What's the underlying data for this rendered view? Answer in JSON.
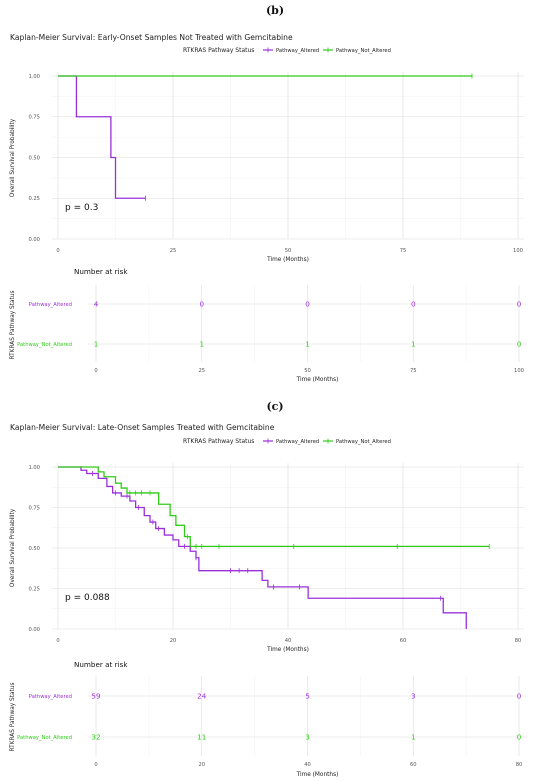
{
  "colors": {
    "altered": "#9B30D9",
    "not_altered": "#2ECC17"
  },
  "panels": [
    {
      "label": "(b)",
      "title": "Kaplan-Meier Survival: Early-Onset Samples Not Treated with Gemcitabine",
      "legend_title": "RTKRAS Pathway Status",
      "legend_items": [
        "Pathway_Altered",
        "Pathway_Not_Altered"
      ],
      "ylabel": "Overall Survival Probability",
      "xlabel": "Time (Months)",
      "pvalue": "p = 0.3",
      "xticks": [
        "0",
        "25",
        "50",
        "75",
        "100"
      ],
      "yticks": [
        "0.00",
        "0.25",
        "0.50",
        "0.75",
        "1.00"
      ],
      "risk_title": "Number at risk",
      "risk_ylabel": "RTKRAS Pathway Status",
      "risk_xlabel": "Time (Months)",
      "risk_xticks": [
        "0",
        "25",
        "50",
        "75",
        "100"
      ],
      "risk_rows": [
        {
          "name": "Pathway_Altered",
          "values": [
            "4",
            "0",
            "0",
            "0",
            "0"
          ]
        },
        {
          "name": "Pathway_Not_Altered",
          "values": [
            "1",
            "1",
            "1",
            "1",
            "0"
          ]
        }
      ]
    },
    {
      "label": "(c)",
      "title": "Kaplan-Meier Survival: Late-Onset Samples Treated with Gemcitabine",
      "legend_title": "RTKRAS Pathway Status",
      "legend_items": [
        "Pathway_Altered",
        "Pathway_Not_Altered"
      ],
      "ylabel": "Overall Survival Probability",
      "xlabel": "Time (Months)",
      "pvalue": "p = 0.088",
      "xticks": [
        "0",
        "20",
        "40",
        "60",
        "80"
      ],
      "yticks": [
        "0.00",
        "0.25",
        "0.50",
        "0.75",
        "1.00"
      ],
      "risk_title": "Number at risk",
      "risk_ylabel": "RTKRAS Pathway Status",
      "risk_xlabel": "Time (Months)",
      "risk_xticks": [
        "0",
        "20",
        "40",
        "60",
        "80"
      ],
      "risk_rows": [
        {
          "name": "Pathway_Altered",
          "values": [
            "59",
            "24",
            "5",
            "3",
            "0"
          ]
        },
        {
          "name": "Pathway_Not_Altered",
          "values": [
            "32",
            "11",
            "3",
            "1",
            "0"
          ]
        }
      ]
    }
  ],
  "chart_data": [
    {
      "type": "line",
      "subtype": "kaplan-meier",
      "title": "Kaplan-Meier Survival: Early-Onset Samples Not Treated with Gemcitabine",
      "xlabel": "Time (Months)",
      "ylabel": "Overall Survival Probability",
      "xlim": [
        0,
        100
      ],
      "ylim": [
        0,
        1
      ],
      "series": [
        {
          "name": "Pathway_Altered",
          "color": "#9B30D9",
          "steps": [
            [
              0,
              1
            ],
            [
              4,
              1
            ],
            [
              4,
              0.75
            ],
            [
              11.5,
              0.75
            ],
            [
              11.5,
              0.5
            ],
            [
              12.5,
              0.5
            ],
            [
              12.5,
              0.25
            ],
            [
              19,
              0.25
            ]
          ],
          "censored": [
            19
          ]
        },
        {
          "name": "Pathway_Not_Altered",
          "color": "#2ECC17",
          "steps": [
            [
              0,
              1
            ],
            [
              90,
              1
            ]
          ],
          "censored": [
            90
          ]
        }
      ]
    },
    {
      "type": "line",
      "subtype": "kaplan-meier",
      "title": "Kaplan-Meier Survival: Late-Onset Samples Treated with Gemcitabine",
      "xlabel": "Time (Months)",
      "ylabel": "Overall Survival Probability",
      "xlim": [
        0,
        80
      ],
      "ylim": [
        0,
        1
      ],
      "series": [
        {
          "name": "Pathway_Altered",
          "color": "#9B30D9",
          "steps": [
            [
              0,
              1
            ],
            [
              4,
              1
            ],
            [
              4,
              0.98
            ],
            [
              5,
              0.98
            ],
            [
              5,
              0.96
            ],
            [
              7,
              0.96
            ],
            [
              7,
              0.93
            ],
            [
              8.5,
              0.93
            ],
            [
              8.5,
              0.88
            ],
            [
              9.5,
              0.88
            ],
            [
              9.5,
              0.84
            ],
            [
              11,
              0.84
            ],
            [
              11,
              0.82
            ],
            [
              12.5,
              0.82
            ],
            [
              12.5,
              0.79
            ],
            [
              13.5,
              0.79
            ],
            [
              13.5,
              0.75
            ],
            [
              15,
              0.75
            ],
            [
              15,
              0.7
            ],
            [
              16,
              0.7
            ],
            [
              16,
              0.66
            ],
            [
              17,
              0.66
            ],
            [
              17,
              0.62
            ],
            [
              18.5,
              0.62
            ],
            [
              18.5,
              0.58
            ],
            [
              20,
              0.58
            ],
            [
              20,
              0.55
            ],
            [
              21,
              0.55
            ],
            [
              21,
              0.51
            ],
            [
              23,
              0.51
            ],
            [
              23,
              0.48
            ],
            [
              24,
              0.48
            ],
            [
              24,
              0.44
            ],
            [
              24.5,
              0.44
            ],
            [
              24.5,
              0.36
            ],
            [
              35.5,
              0.36
            ],
            [
              35.5,
              0.3
            ],
            [
              36.5,
              0.3
            ],
            [
              36.5,
              0.26
            ],
            [
              43.5,
              0.26
            ],
            [
              43.5,
              0.19
            ],
            [
              67,
              0.19
            ],
            [
              67,
              0.1
            ],
            [
              71,
              0.1
            ],
            [
              71,
              0.0
            ]
          ],
          "censored": [
            6,
            10,
            12,
            14,
            16.5,
            17.5,
            22,
            24,
            30,
            31.5,
            33,
            37.5,
            42,
            66.5
          ]
        },
        {
          "name": "Pathway_Not_Altered",
          "color": "#2ECC17",
          "steps": [
            [
              0,
              1
            ],
            [
              7,
              1
            ],
            [
              7,
              0.97
            ],
            [
              8,
              0.97
            ],
            [
              8,
              0.94
            ],
            [
              10,
              0.94
            ],
            [
              10,
              0.9
            ],
            [
              11,
              0.9
            ],
            [
              11,
              0.87
            ],
            [
              12,
              0.87
            ],
            [
              12,
              0.84
            ],
            [
              17.5,
              0.84
            ],
            [
              17.5,
              0.77
            ],
            [
              19.5,
              0.77
            ],
            [
              19.5,
              0.7
            ],
            [
              20.5,
              0.7
            ],
            [
              20.5,
              0.64
            ],
            [
              22,
              0.64
            ],
            [
              22,
              0.57
            ],
            [
              23,
              0.57
            ],
            [
              23,
              0.51
            ],
            [
              75,
              0.51
            ]
          ],
          "censored": [
            12.5,
            13.5,
            14.5,
            16,
            22.5,
            24,
            25,
            28,
            41,
            59,
            75
          ]
        }
      ]
    }
  ]
}
